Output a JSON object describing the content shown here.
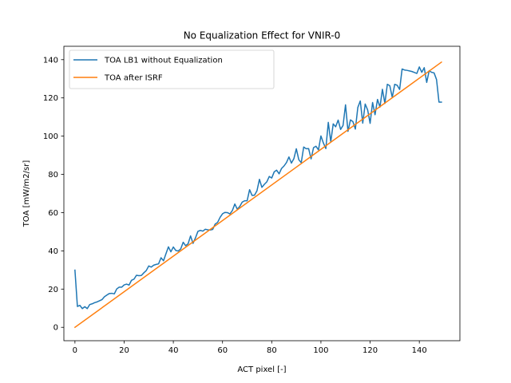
{
  "chart_data": {
    "type": "line",
    "title": "No Equalization Effect for VNIR-0",
    "xlabel": "ACT pixel [-]",
    "ylabel": "TOA [mW/m2/sr]",
    "xlim": [
      -4.5,
      156.5
    ],
    "ylim": [
      -7,
      147
    ],
    "xticks": [
      0,
      20,
      40,
      60,
      80,
      100,
      120,
      140
    ],
    "yticks": [
      0,
      20,
      40,
      60,
      80,
      100,
      120,
      140
    ],
    "grid": false,
    "legend_position": "top-left",
    "series": [
      {
        "name": "TOA LB1 without Equalization",
        "color": "#1f77b4",
        "x": [
          0,
          1,
          2,
          3,
          4,
          5,
          6,
          7,
          8,
          9,
          10,
          11,
          12,
          13,
          14,
          15,
          16,
          17,
          18,
          19,
          20,
          21,
          22,
          23,
          24,
          25,
          26,
          27,
          28,
          29,
          30,
          31,
          32,
          33,
          34,
          35,
          36,
          37,
          38,
          39,
          40,
          41,
          42,
          43,
          44,
          45,
          46,
          47,
          48,
          49,
          50,
          51,
          52,
          53,
          54,
          55,
          56,
          57,
          58,
          59,
          60,
          61,
          62,
          63,
          64,
          65,
          66,
          67,
          68,
          69,
          70,
          71,
          72,
          73,
          74,
          75,
          76,
          77,
          78,
          79,
          80,
          81,
          82,
          83,
          84,
          85,
          86,
          87,
          88,
          89,
          90,
          91,
          92,
          93,
          94,
          95,
          96,
          97,
          98,
          99,
          100,
          101,
          102,
          103,
          104,
          105,
          106,
          107,
          108,
          109,
          110,
          111,
          112,
          113,
          114,
          115,
          116,
          117,
          118,
          119,
          120,
          121,
          122,
          123,
          124,
          125,
          126,
          127,
          128,
          129,
          130,
          131,
          132,
          133,
          134,
          135,
          136,
          137,
          138,
          139,
          140,
          141,
          142,
          143,
          144,
          145,
          146,
          147,
          148,
          149
        ],
        "y": [
          29.9,
          10.9,
          11.5,
          9.8,
          10.8,
          9.8,
          11.9,
          12.3,
          12.9,
          13.3,
          13.9,
          14.5,
          16.0,
          16.9,
          17.7,
          17.8,
          17.5,
          20.1,
          21.0,
          21.0,
          22.2,
          22.6,
          22.1,
          24.6,
          25.2,
          27.2,
          27.0,
          27.1,
          28.5,
          29.7,
          32.1,
          31.5,
          32.5,
          32.9,
          33.2,
          36.4,
          34.8,
          38.5,
          42.1,
          39.5,
          42.0,
          40.2,
          39.9,
          41.0,
          44.5,
          42.7,
          43.7,
          47.8,
          43.9,
          46.8,
          50.2,
          50.7,
          50.3,
          51.3,
          51.0,
          50.9,
          51.2,
          54.0,
          54.9,
          57.5,
          59.4,
          60.1,
          60.0,
          59.3,
          61.1,
          64.5,
          61.8,
          63.2,
          65.5,
          66.2,
          66.2,
          72.0,
          69.0,
          69.1,
          71.4,
          77.4,
          73.2,
          74.8,
          76.1,
          78.9,
          78.1,
          81.3,
          82.2,
          80.3,
          83.1,
          84.4,
          86.2,
          89.1,
          85.9,
          88.2,
          93.4,
          87.7,
          86.1,
          94.3,
          93.4,
          93.5,
          88.1,
          94.0,
          94.7,
          92.8,
          100.1,
          96.4,
          93.5,
          107.2,
          97.0,
          106.4,
          104.9,
          108.4,
          103.5,
          105.6,
          116.4,
          102.5,
          108.5,
          107.6,
          103.7,
          115.0,
          118.4,
          106.8,
          116.8,
          113.7,
          106.7,
          117.6,
          111.2,
          119.2,
          115.2,
          124.5,
          117.1,
          127.1,
          126.4,
          120.3,
          127.1,
          126.6,
          124.4,
          135.1,
          134.6,
          134.4,
          134.1,
          133.8,
          133.3,
          132.8,
          136.2,
          133.4,
          135.8,
          128.1,
          134.2,
          133.4,
          133.1,
          129.6,
          117.8,
          117.8
        ]
      },
      {
        "name": "TOA after ISRF",
        "color": "#ff7f0e",
        "x": [
          0,
          149
        ],
        "y": [
          0,
          138.7
        ]
      }
    ]
  }
}
